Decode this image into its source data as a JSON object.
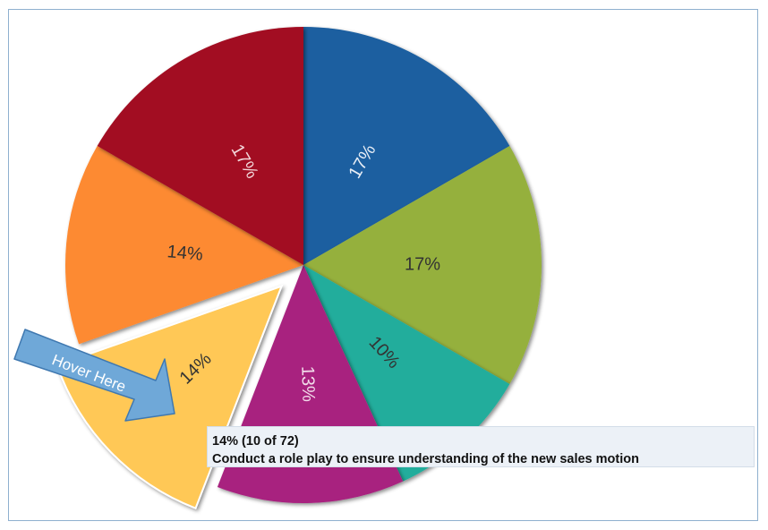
{
  "chart_data": {
    "type": "pie",
    "slices": [
      {
        "label": "17%",
        "value": 17,
        "color": "#1a5fa0",
        "text_color": "#e8eef6"
      },
      {
        "label": "17%",
        "value": 17,
        "color": "#95b03c",
        "text_color": "#333333"
      },
      {
        "label": "10%",
        "value": 10,
        "color": "#22ad9c",
        "text_color": "#333333"
      },
      {
        "label": "13%",
        "value": 13,
        "color": "#a8237f",
        "text_color": "#f2dcea"
      },
      {
        "label": "14%",
        "value": 14,
        "color": "#ffc857",
        "text_color": "#333333",
        "exploded": true
      },
      {
        "label": "14%",
        "value": 14,
        "color": "#fd8a33",
        "text_color": "#333333"
      },
      {
        "label": "17%",
        "value": 17,
        "color": "#a21023",
        "text_color": "#f2d5d8"
      }
    ]
  },
  "tooltip": {
    "line1": "14% (10 of 72)",
    "line2": "Conduct a role play to ensure understanding of the new sales motion"
  },
  "callout": {
    "text": "Hover Here",
    "color": "#6fa8d8",
    "border_color": "#3f78b0",
    "text_color": "#ffffff"
  }
}
